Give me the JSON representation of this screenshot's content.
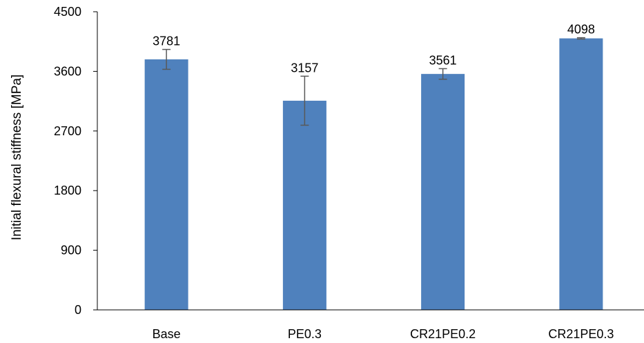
{
  "chart_data": {
    "type": "bar",
    "title": "",
    "xlabel": "",
    "ylabel": "Initial flexural stiffness [MPa]",
    "categories": [
      "Base",
      "PE0.3",
      "CR21PE0.2",
      "CR21PE0.3"
    ],
    "values": [
      3781,
      3157,
      3561,
      4098
    ],
    "error": [
      150,
      370,
      80,
      10
    ],
    "data_labels": [
      "3781",
      "3157",
      "3561",
      "4098"
    ],
    "ylim": [
      0,
      4500
    ],
    "yticks": [
      0,
      900,
      1800,
      2700,
      3600,
      4500
    ],
    "ytick_labels": [
      "0",
      "900",
      "1800",
      "2700",
      "3600",
      "4500"
    ],
    "grid": false,
    "legend": "none",
    "colors": {
      "bar": "#4f81bd",
      "axis": "#000000",
      "error_bar": "#595959"
    }
  }
}
